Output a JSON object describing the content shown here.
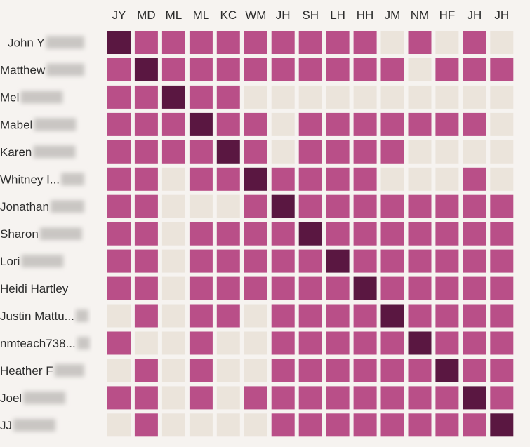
{
  "chart_data": {
    "type": "heatmap",
    "columns": [
      "JY",
      "MD",
      "ML",
      "ML",
      "KC",
      "WM",
      "JH",
      "SH",
      "LH",
      "HH",
      "JM",
      "NM",
      "HF",
      "JH",
      "JH"
    ],
    "rows": [
      "John Y",
      "Matthew",
      "Mel",
      "Mabel",
      "Karen",
      "Whitney I...",
      "Jonathan",
      "Sharon",
      "Lori",
      "Heidi Hartley",
      "Justin Mattu...",
      "nmteach738...",
      "Heather F",
      "Joel",
      "JJ"
    ],
    "legend": {
      "self": "#5a1741",
      "yes": "#b94f88",
      "no": "#ebe4db"
    },
    "matrix": [
      [
        2,
        1,
        1,
        1,
        1,
        1,
        1,
        1,
        1,
        1,
        0,
        1,
        0,
        1,
        0
      ],
      [
        1,
        2,
        1,
        1,
        1,
        1,
        1,
        1,
        1,
        1,
        1,
        0,
        1,
        1,
        1
      ],
      [
        1,
        1,
        2,
        1,
        1,
        0,
        0,
        0,
        0,
        0,
        0,
        0,
        0,
        0,
        0
      ],
      [
        1,
        1,
        1,
        2,
        1,
        1,
        0,
        1,
        1,
        1,
        1,
        1,
        1,
        1,
        0
      ],
      [
        1,
        1,
        1,
        1,
        2,
        1,
        0,
        1,
        1,
        1,
        1,
        0,
        0,
        0,
        0
      ],
      [
        1,
        1,
        0,
        1,
        1,
        2,
        1,
        1,
        1,
        1,
        0,
        0,
        0,
        1,
        0
      ],
      [
        1,
        1,
        0,
        0,
        0,
        1,
        2,
        1,
        1,
        1,
        1,
        1,
        1,
        1,
        1
      ],
      [
        1,
        1,
        0,
        1,
        1,
        1,
        1,
        2,
        1,
        1,
        1,
        1,
        1,
        1,
        1
      ],
      [
        1,
        1,
        0,
        1,
        1,
        1,
        1,
        1,
        2,
        1,
        1,
        1,
        1,
        1,
        1
      ],
      [
        1,
        1,
        0,
        1,
        1,
        1,
        1,
        1,
        1,
        2,
        1,
        1,
        1,
        1,
        1
      ],
      [
        0,
        1,
        0,
        1,
        1,
        0,
        1,
        1,
        1,
        1,
        2,
        1,
        1,
        1,
        1
      ],
      [
        1,
        0,
        0,
        1,
        0,
        0,
        1,
        1,
        1,
        1,
        1,
        2,
        1,
        1,
        1
      ],
      [
        0,
        1,
        0,
        1,
        0,
        0,
        1,
        1,
        1,
        1,
        1,
        1,
        2,
        1,
        1
      ],
      [
        1,
        1,
        0,
        1,
        0,
        1,
        1,
        1,
        1,
        1,
        1,
        1,
        1,
        2,
        1
      ],
      [
        0,
        1,
        0,
        0,
        0,
        0,
        1,
        1,
        1,
        1,
        1,
        1,
        1,
        1,
        2
      ]
    ]
  }
}
